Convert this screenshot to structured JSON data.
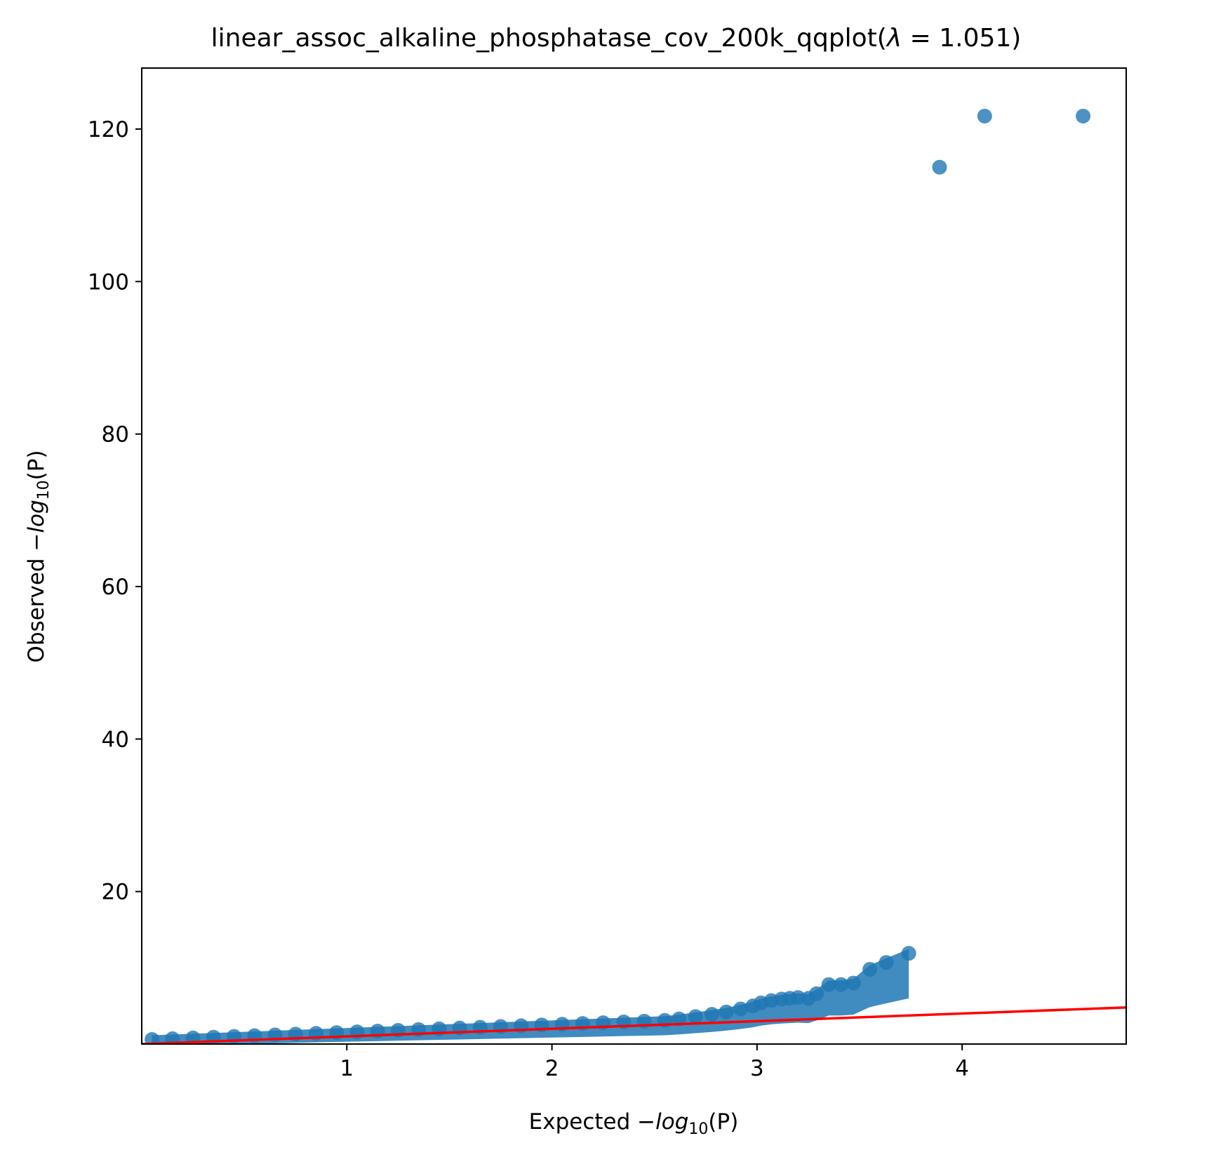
{
  "chart_data": {
    "type": "scatter",
    "title": {
      "prefix": "linear_assoc_alkaline_phosphatase_cov_200k_qqplot(",
      "lambda_symbol": "λ",
      "equals": " = 1.051",
      "suffix": ")"
    },
    "xlabel": {
      "prefix": "Expected ",
      "minus": "−",
      "log": "log",
      "sub": "10",
      "arg": "(P)"
    },
    "ylabel": {
      "prefix": "Observed ",
      "minus": "−",
      "log": "log",
      "sub": "10",
      "arg": "(P)"
    },
    "xlim": [
      0.0,
      4.8
    ],
    "ylim": [
      0.0,
      128.0
    ],
    "xticks": [
      1,
      2,
      3,
      4
    ],
    "yticks": [
      20,
      40,
      60,
      80,
      100,
      120
    ],
    "grid": false,
    "series": [
      {
        "kind": "points",
        "color": "#1f77b4",
        "opacity": 0.8,
        "points": [
          [
            0.05,
            0.6
          ],
          [
            0.15,
            0.7
          ],
          [
            0.25,
            0.8
          ],
          [
            0.35,
            0.9
          ],
          [
            0.45,
            1.0
          ],
          [
            0.55,
            1.1
          ],
          [
            0.65,
            1.2
          ],
          [
            0.75,
            1.3
          ],
          [
            0.85,
            1.4
          ],
          [
            0.95,
            1.5
          ],
          [
            1.05,
            1.6
          ],
          [
            1.15,
            1.7
          ],
          [
            1.25,
            1.8
          ],
          [
            1.35,
            1.9
          ],
          [
            1.45,
            2.0
          ],
          [
            1.55,
            2.1
          ],
          [
            1.65,
            2.2
          ],
          [
            1.75,
            2.3
          ],
          [
            1.85,
            2.4
          ],
          [
            1.95,
            2.5
          ],
          [
            2.05,
            2.6
          ],
          [
            2.15,
            2.7
          ],
          [
            2.25,
            2.8
          ],
          [
            2.35,
            2.9
          ],
          [
            2.45,
            3.0
          ],
          [
            2.55,
            3.1
          ],
          [
            2.62,
            3.3
          ],
          [
            2.7,
            3.6
          ],
          [
            2.78,
            3.9
          ],
          [
            2.85,
            4.2
          ],
          [
            2.92,
            4.6
          ],
          [
            2.98,
            5.0
          ],
          [
            3.02,
            5.4
          ],
          [
            3.07,
            5.7
          ],
          [
            3.12,
            5.9
          ],
          [
            3.16,
            6.0
          ],
          [
            3.2,
            6.1
          ],
          [
            3.25,
            6.0
          ],
          [
            3.29,
            6.6
          ],
          [
            3.35,
            7.8
          ],
          [
            3.41,
            7.8
          ],
          [
            3.47,
            8.0
          ],
          [
            3.55,
            9.8
          ],
          [
            3.63,
            10.7
          ],
          [
            3.74,
            11.9
          ],
          [
            3.89,
            115.0
          ],
          [
            4.11,
            121.7
          ],
          [
            4.59,
            121.7
          ]
        ]
      },
      {
        "kind": "line",
        "color": "#ff0000",
        "x": [
          0.0,
          4.8
        ],
        "y": [
          0.0,
          4.8
        ]
      }
    ]
  }
}
